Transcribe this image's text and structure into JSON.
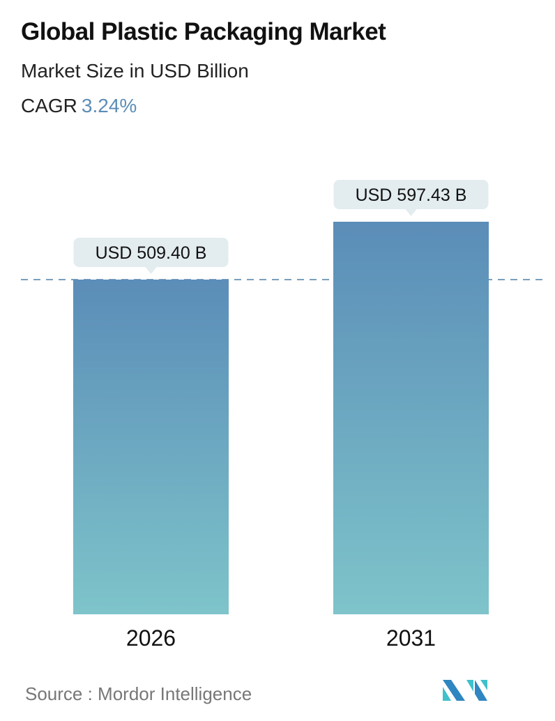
{
  "chart_data": {
    "type": "bar",
    "title": "Global Plastic Packaging Market",
    "subtitle": "Market Size in USD Billion",
    "cagr_label": "CAGR",
    "cagr_value": "3.24%",
    "categories": [
      "2026",
      "2031"
    ],
    "values": [
      509.4,
      597.43
    ],
    "data_labels": [
      "USD 509.40 B",
      "USD 597.43 B"
    ],
    "reference_line": 509.4,
    "ylim": [
      0,
      597.43
    ],
    "grid": false,
    "colors": {
      "bar_top": "#5b8db8",
      "bar_bottom": "#7ec4ca",
      "label_bg": "#e3ecef",
      "accent": "#5b8db7",
      "dash": "#4f7ea6"
    }
  },
  "source": {
    "text": "Source :  Mordor Intelligence"
  },
  "logo": {
    "name": "mordor-intelligence-logo",
    "colors": [
      "#2f86c1",
      "#3fc1cc"
    ]
  }
}
